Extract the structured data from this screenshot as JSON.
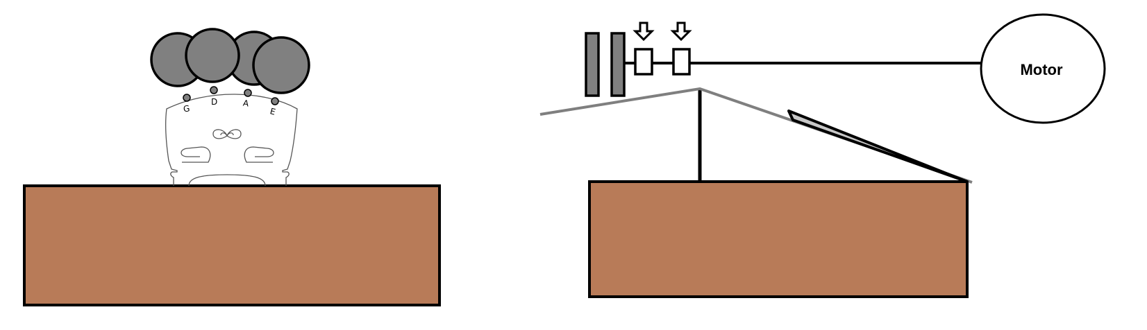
{
  "strings": [
    "G",
    "D",
    "A",
    "E"
  ],
  "motor": {
    "label": "Motor"
  },
  "colors": {
    "wood": "#b87b58",
    "wheel": "#808080",
    "bow_hair": "#7f7f7f",
    "bow_stick": "#c8c8c8",
    "bridge_line": "#555555",
    "outline": "#000000"
  }
}
